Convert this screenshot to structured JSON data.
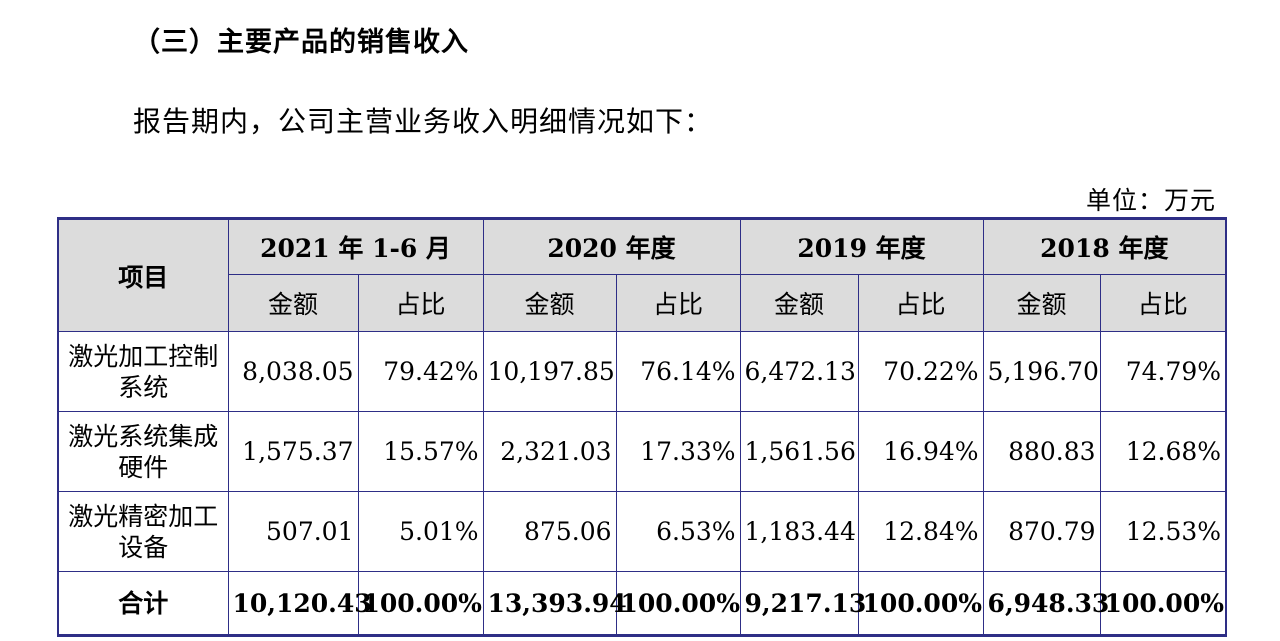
{
  "section_title": "（三）主要产品的销售收入",
  "intro": "报告期内，公司主营业务收入明细情况如下：",
  "unit": "单位：万元",
  "table": {
    "item_header": "项目",
    "periods": [
      "2021 年 1-6 月",
      "2020 年度",
      "2019 年度",
      "2018 年度"
    ],
    "amount_label": "金额",
    "ratio_label": "占比",
    "rows": [
      {
        "item": "激光加工控制系统",
        "cells": [
          "8,038.05",
          "79.42%",
          "10,197.85",
          "76.14%",
          "6,472.13",
          "70.22%",
          "5,196.70",
          "74.79%"
        ]
      },
      {
        "item": "激光系统集成硬件",
        "cells": [
          "1,575.37",
          "15.57%",
          "2,321.03",
          "17.33%",
          "1,561.56",
          "16.94%",
          "880.83",
          "12.68%"
        ]
      },
      {
        "item": "激光精密加工设备",
        "cells": [
          "507.01",
          "5.01%",
          "875.06",
          "6.53%",
          "1,183.44",
          "12.84%",
          "870.79",
          "12.53%"
        ]
      }
    ],
    "total": {
      "item": "合计",
      "cells": [
        "10,120.43",
        "100.00%",
        "13,393.94",
        "100.00%",
        "9,217.13",
        "100.00%",
        "6,948.33",
        "100.00%"
      ]
    }
  }
}
